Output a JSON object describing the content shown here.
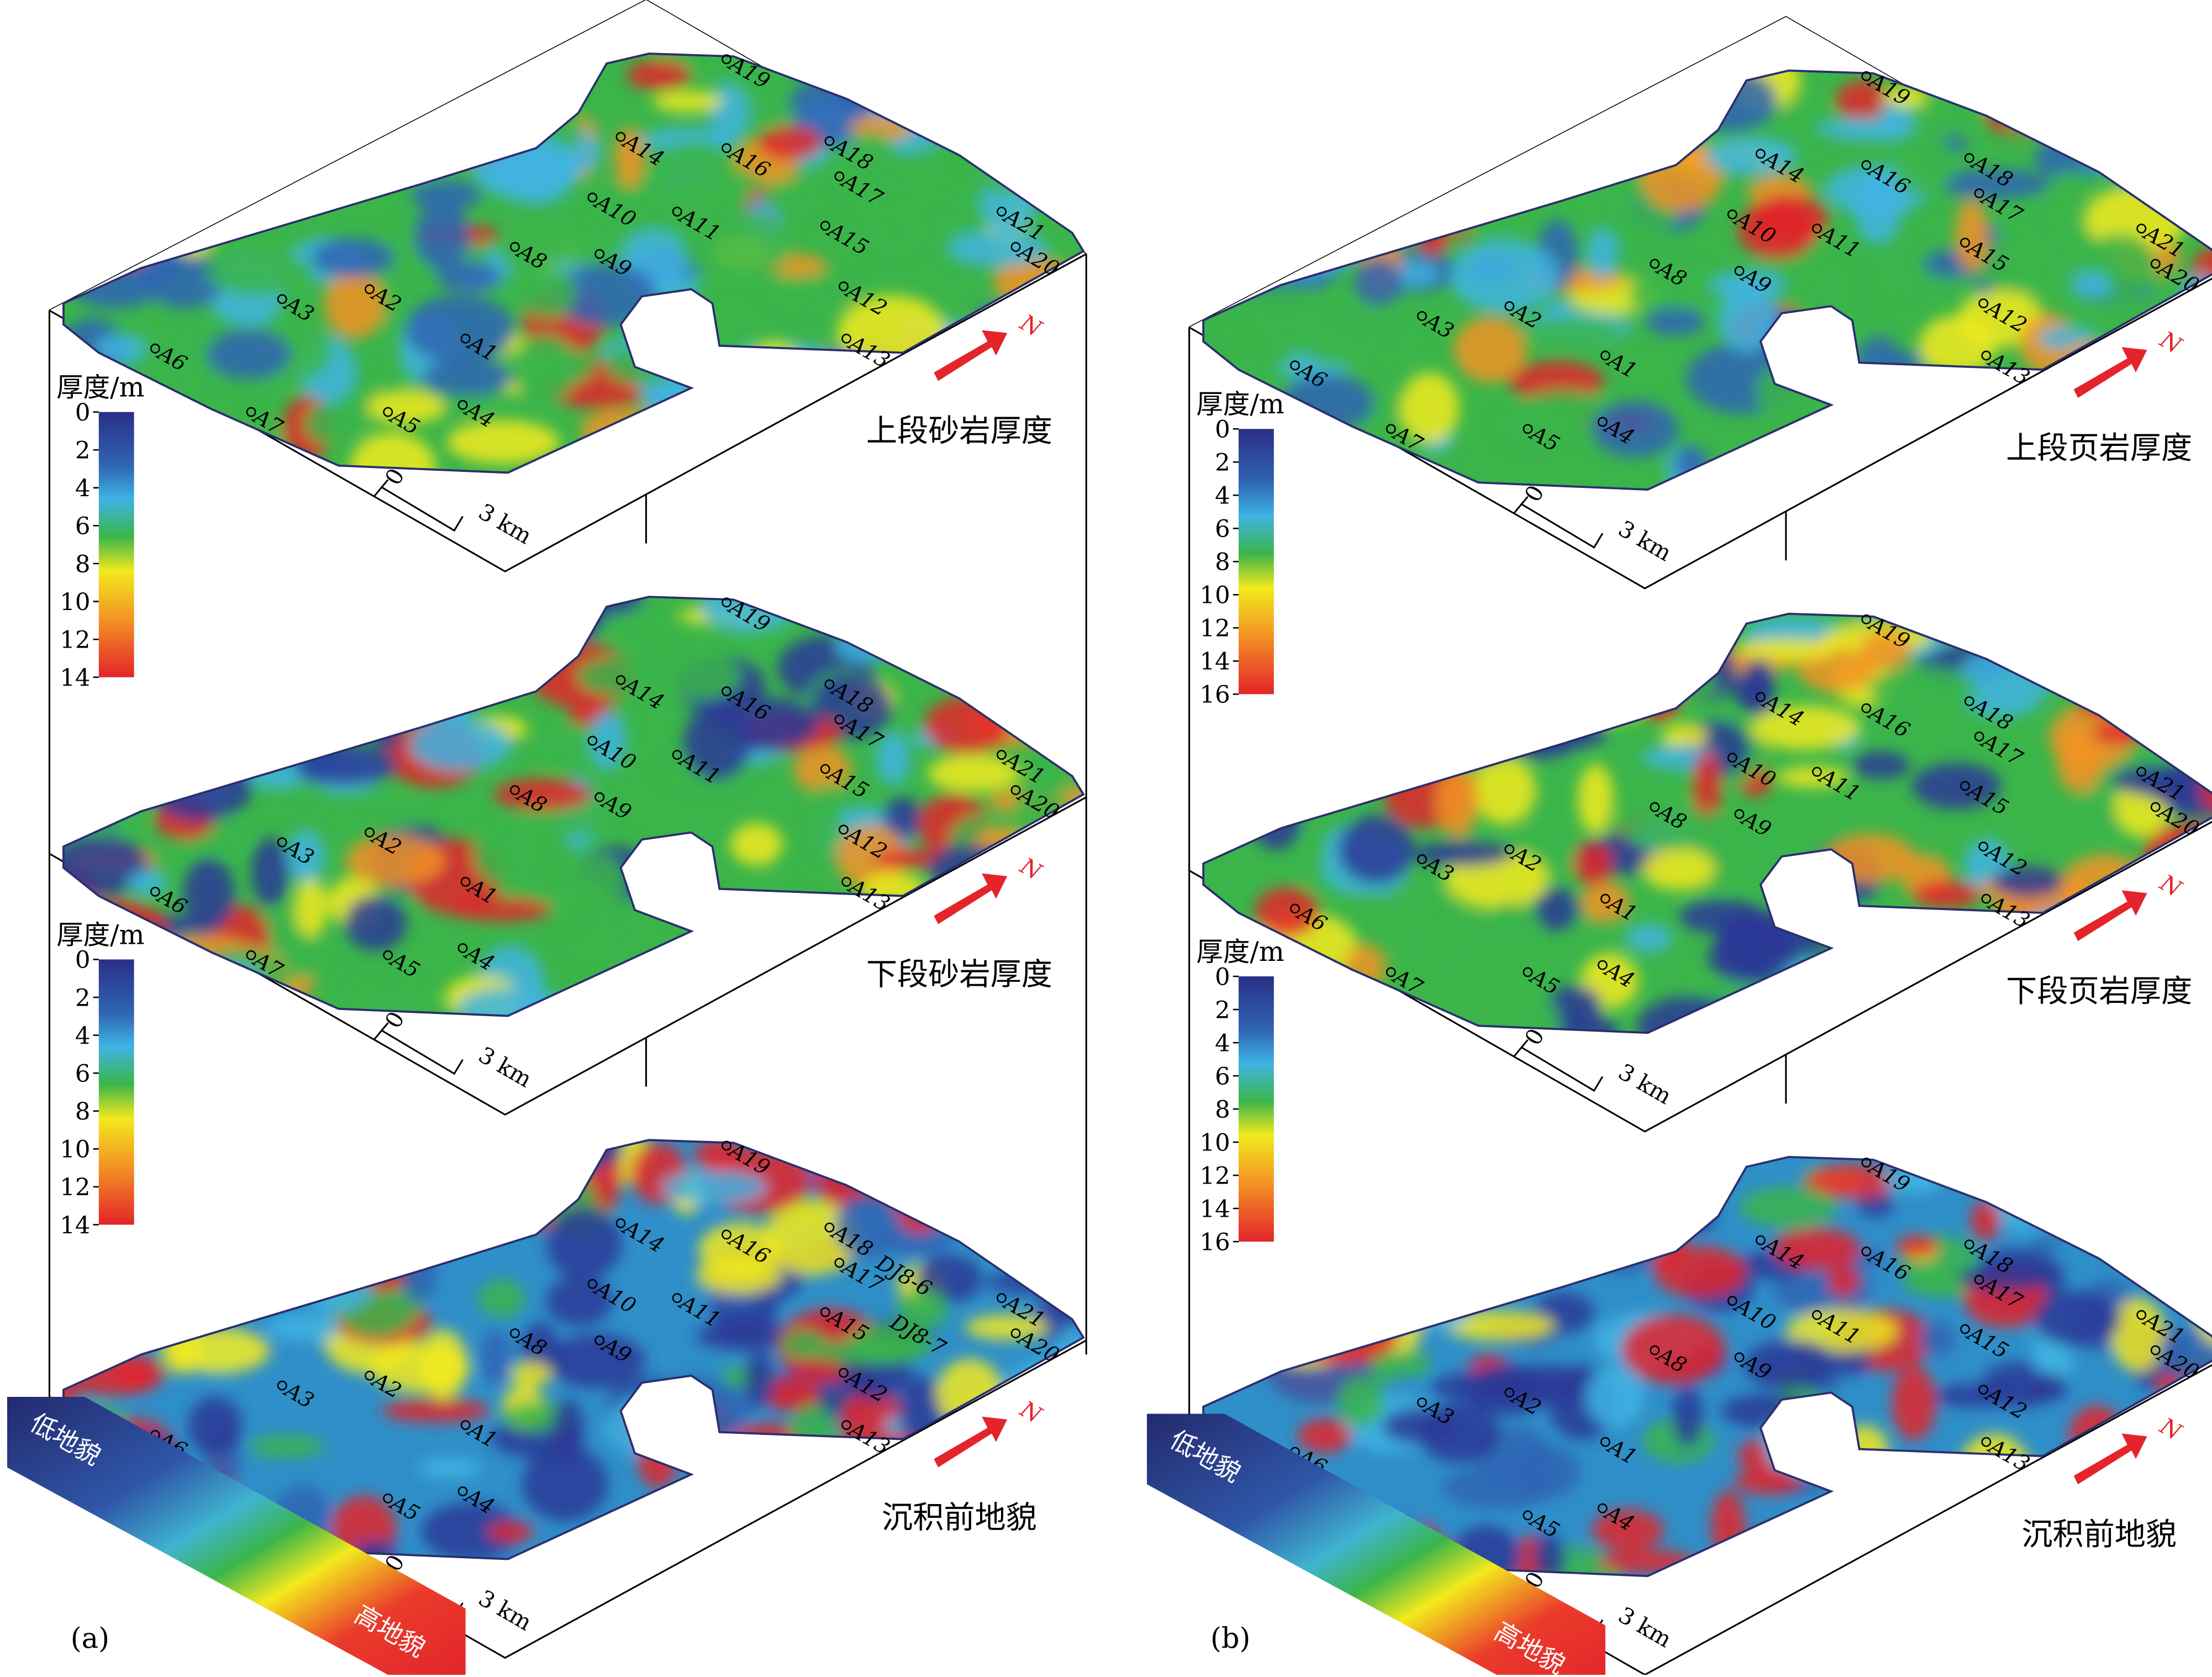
{
  "panels": [
    {
      "label": "(a)",
      "layers": [
        {
          "title": "上段砂岩厚度"
        },
        {
          "title": "下段砂岩厚度"
        },
        {
          "title": "沉积前地貌",
          "extra_labels": [
            "DJ8-6",
            "DJ8-7"
          ]
        }
      ],
      "colorbars": [
        {
          "title": "厚度/m",
          "ticks": [
            0,
            2,
            4,
            6,
            8,
            10,
            12,
            14
          ]
        },
        {
          "title": "厚度/m",
          "ticks": [
            0,
            2,
            4,
            6,
            8,
            10,
            12,
            14
          ]
        }
      ]
    },
    {
      "label": "(b)",
      "layers": [
        {
          "title": "上段页岩厚度"
        },
        {
          "title": "下段页岩厚度"
        },
        {
          "title": "沉积前地貌"
        }
      ],
      "colorbars": [
        {
          "title": "厚度/m",
          "ticks": [
            0,
            2,
            4,
            6,
            8,
            10,
            12,
            14,
            16
          ]
        },
        {
          "title": "厚度/m",
          "ticks": [
            0,
            2,
            4,
            6,
            8,
            10,
            12,
            14,
            16
          ]
        }
      ]
    }
  ],
  "wells": [
    "A1",
    "A2",
    "A3",
    "A4",
    "A5",
    "A6",
    "A7",
    "A8",
    "A9",
    "A10",
    "A11",
    "A12",
    "A13",
    "A14",
    "A15",
    "A16",
    "A17",
    "A18",
    "A19",
    "A20",
    "A21"
  ],
  "scale": {
    "zero": "0",
    "length": "3 km"
  },
  "north": "N",
  "relief_legend": {
    "low": "低地貌",
    "high": "高地貌"
  }
}
